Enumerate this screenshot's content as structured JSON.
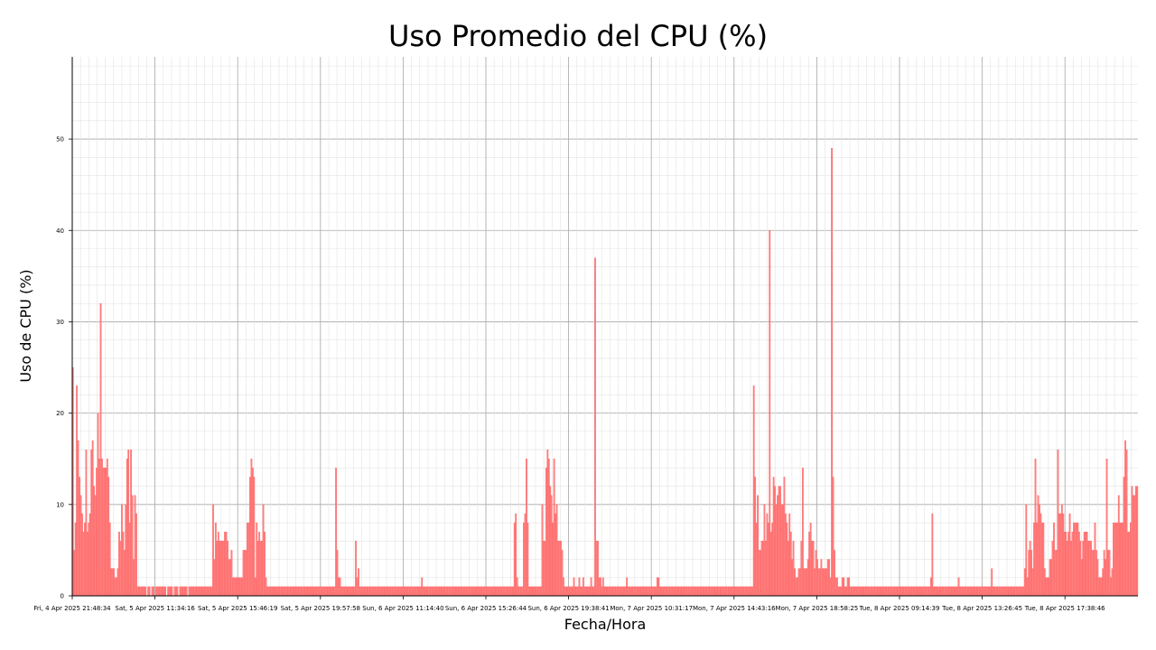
{
  "chart_data": {
    "type": "bar",
    "title": "Uso Promedio del CPU (%)",
    "xlabel": "Fecha/Hora",
    "ylabel": "Uso de CPU (%)",
    "ylim": [
      0,
      59
    ],
    "yticks": [
      0,
      10,
      20,
      30,
      40,
      50
    ],
    "grid": "major and minor",
    "bar_color": "#ff7f7f",
    "bar_edge_color": "#ff5a5a",
    "xtick_labels": [
      "Fri, 4 Apr 2025 21:48:34",
      "Sat, 5 Apr 2025 11:34:16",
      "Sat, 5 Apr 2025 15:46:19",
      "Sat, 5 Apr 2025 19:57:58",
      "Sun, 6 Apr 2025 11:14:40",
      "Sun, 6 Apr 2025 15:26:44",
      "Sun, 6 Apr 2025 19:38:41",
      "Mon, 7 Apr 2025 10:31:17",
      "Mon, 7 Apr 2025 14:43:16",
      "Mon, 7 Apr 2025 18:58:25",
      "Tue, 8 Apr 2025 09:14:39",
      "Tue, 8 Apr 2025 13:26:45",
      "Tue, 8 Apr 2025 17:38:46"
    ],
    "values": [
      25,
      5,
      8,
      23,
      17,
      13,
      11,
      9,
      7,
      8,
      16,
      7,
      8,
      9,
      16,
      17,
      12,
      11,
      14,
      20,
      15,
      32,
      15,
      14,
      14,
      14,
      15,
      13,
      8,
      3,
      3,
      3,
      2,
      2,
      3,
      7,
      6,
      10,
      7,
      5,
      10,
      15,
      16,
      8,
      16,
      11,
      4,
      11,
      9,
      1,
      1,
      1,
      1,
      1,
      1,
      1,
      0,
      1,
      1,
      0,
      1,
      1,
      0,
      1,
      1,
      1,
      1,
      1,
      1,
      1,
      1,
      0,
      1,
      1,
      1,
      1,
      0,
      1,
      1,
      1,
      0,
      1,
      1,
      1,
      1,
      1,
      1,
      0,
      1,
      1,
      1,
      1,
      1,
      1,
      1,
      1,
      1,
      1,
      1,
      1,
      1,
      1,
      1,
      1,
      1,
      1,
      10,
      4,
      8,
      6,
      7,
      6,
      6,
      6,
      6,
      7,
      7,
      6,
      4,
      4,
      5,
      2,
      2,
      2,
      2,
      2,
      2,
      2,
      2,
      5,
      5,
      5,
      8,
      8,
      13,
      15,
      14,
      13,
      2,
      8,
      6,
      7,
      6,
      6,
      10,
      7,
      2,
      1,
      1,
      1,
      1,
      1,
      1,
      1,
      1,
      1,
      1,
      1,
      1,
      1,
      1,
      1,
      1,
      1,
      1,
      1,
      1,
      1,
      1,
      1,
      1,
      1,
      1,
      1,
      1,
      1,
      1,
      1,
      1,
      1,
      1,
      1,
      1,
      1,
      1,
      1,
      1,
      1,
      1,
      1,
      1,
      1,
      1,
      1,
      1,
      1,
      1,
      1,
      1,
      14,
      5,
      2,
      2,
      1,
      1,
      1,
      1,
      1,
      1,
      1,
      1,
      1,
      1,
      1,
      6,
      2,
      3,
      1,
      1,
      1,
      1,
      1,
      1,
      1,
      1,
      1,
      1,
      1,
      1,
      1,
      1,
      1,
      1,
      1,
      1,
      1,
      1,
      1,
      1,
      1,
      1,
      1,
      1,
      1,
      1,
      1,
      1,
      1,
      1,
      1,
      1,
      1,
      1,
      1,
      1,
      1,
      1,
      1,
      1,
      1,
      1,
      1,
      1,
      1,
      2,
      1,
      1,
      1,
      1,
      1,
      1,
      1,
      1,
      1,
      1,
      1,
      1,
      1,
      1,
      1,
      1,
      1,
      1,
      1,
      1,
      1,
      1,
      1,
      1,
      1,
      1,
      1,
      1,
      1,
      1,
      1,
      1,
      1,
      1,
      1,
      1,
      1,
      1,
      1,
      1,
      1,
      1,
      1,
      1,
      1,
      1,
      1,
      1,
      1,
      1,
      1,
      1,
      1,
      1,
      1,
      1,
      1,
      1,
      1,
      1,
      1,
      1,
      1,
      1,
      1,
      1,
      1,
      1,
      1,
      8,
      9,
      2,
      1,
      1,
      1,
      1,
      8,
      9,
      15,
      8,
      1,
      1,
      1,
      1,
      1,
      1,
      1,
      1,
      1,
      1,
      10,
      6,
      6,
      14,
      16,
      15,
      12,
      11,
      8,
      15,
      9,
      10,
      6,
      6,
      6,
      5,
      2,
      1,
      1,
      1,
      1,
      1,
      1,
      1,
      2,
      1,
      1,
      1,
      2,
      1,
      1,
      2,
      1,
      1,
      1,
      1,
      1,
      2,
      1,
      1,
      37,
      6,
      6,
      2,
      2,
      1,
      2,
      1,
      1,
      1,
      1,
      1,
      1,
      1,
      1,
      1,
      1,
      1,
      1,
      1,
      1,
      1,
      1,
      1,
      2,
      1,
      1,
      1,
      1,
      1,
      1,
      1,
      1,
      1,
      1,
      1,
      1,
      1,
      1,
      1,
      1,
      1,
      1,
      1,
      1,
      1,
      1,
      2,
      2,
      1,
      1,
      1,
      1,
      1,
      1,
      1,
      1,
      1,
      1,
      1,
      1,
      1,
      1,
      1,
      1,
      1,
      1,
      1,
      1,
      1,
      1,
      1,
      1,
      1,
      1,
      1,
      1,
      1,
      1,
      1,
      1,
      1,
      1,
      1,
      1,
      1,
      1,
      1,
      1,
      1,
      1,
      1,
      1,
      1,
      1,
      1,
      1,
      1,
      1,
      1,
      1,
      1,
      1,
      1,
      1,
      1,
      1,
      1,
      1,
      1,
      1,
      1,
      1,
      1,
      1,
      1,
      1,
      1,
      1,
      1,
      23,
      13,
      8,
      11,
      5,
      5,
      6,
      6,
      10,
      6,
      9,
      8,
      40,
      7,
      8,
      13,
      12,
      10,
      11,
      12,
      12,
      10,
      10,
      13,
      9,
      8,
      6,
      9,
      7,
      4,
      6,
      3,
      2,
      2,
      3,
      3,
      6,
      14,
      3,
      3,
      3,
      4,
      7,
      8,
      6,
      6,
      3,
      5,
      4,
      3,
      3,
      4,
      3,
      3,
      3,
      3,
      4,
      4,
      2,
      49,
      13,
      5,
      2,
      2,
      1,
      1,
      1,
      2,
      2,
      1,
      1,
      2,
      2,
      1,
      1,
      1,
      1,
      1,
      1,
      1,
      1,
      1,
      1,
      1,
      1,
      1,
      1,
      1,
      1,
      1,
      1,
      1,
      1,
      1,
      1,
      1,
      1,
      1,
      1,
      1,
      1,
      1,
      1,
      1,
      1,
      1,
      1,
      1,
      1,
      1,
      1,
      1,
      1,
      1,
      1,
      1,
      1,
      1,
      1,
      1,
      1,
      1,
      1,
      1,
      1,
      1,
      1,
      1,
      1,
      1,
      1,
      1,
      1,
      1,
      2,
      9,
      1,
      1,
      1,
      1,
      1,
      1,
      1,
      1,
      1,
      1,
      1,
      1,
      1,
      1,
      1,
      1,
      1,
      1,
      1,
      2,
      1,
      1,
      1,
      1,
      1,
      1,
      1,
      1,
      1,
      1,
      1,
      1,
      1,
      1,
      1,
      1,
      1,
      1,
      1,
      1,
      1,
      1,
      1,
      1,
      3,
      1,
      1,
      1,
      1,
      1,
      1,
      1,
      1,
      1,
      1,
      1,
      1,
      1,
      1,
      1,
      1,
      1,
      1,
      1,
      1,
      1,
      1,
      1,
      1,
      3,
      10,
      2,
      5,
      6,
      5,
      3,
      8,
      15,
      8,
      11,
      10,
      9,
      8,
      8,
      3,
      2,
      2,
      2,
      4,
      4,
      6,
      8,
      5,
      5,
      16,
      9,
      9,
      10,
      9,
      7,
      7,
      6,
      7,
      9,
      6,
      7,
      8,
      8,
      8,
      8,
      7,
      6,
      4,
      6,
      7,
      7,
      7,
      6,
      6,
      6,
      5,
      5,
      8,
      5,
      4,
      2,
      2,
      2,
      3,
      5,
      4,
      15,
      5,
      5,
      2,
      3,
      8,
      8,
      8,
      8,
      11,
      8,
      8,
      8,
      13,
      17,
      16,
      7,
      7,
      8,
      12,
      11,
      11,
      12,
      12
    ]
  }
}
